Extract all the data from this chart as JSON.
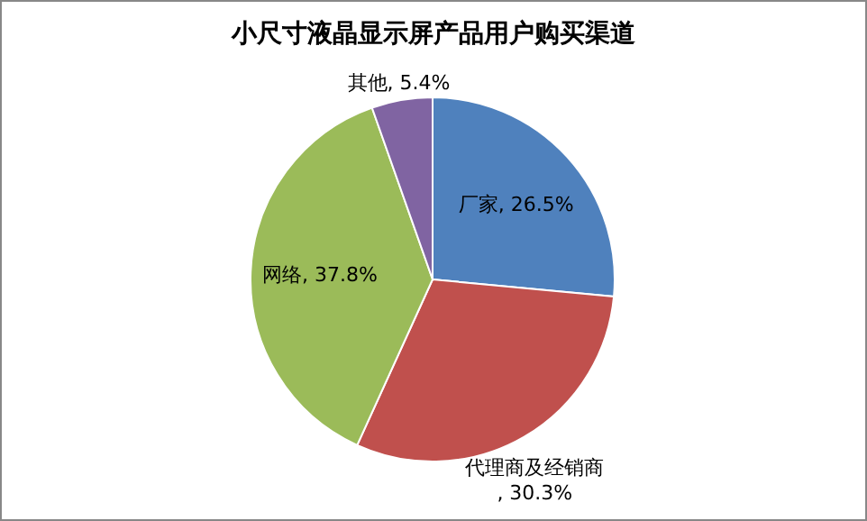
{
  "chart_data": {
    "type": "pie",
    "title": "小尺寸液晶显示屏产品用户购买渠道",
    "categories": [
      "厂家",
      "代理商及经销商",
      "网络",
      "其他"
    ],
    "values": [
      26.5,
      30.3,
      37.8,
      5.4
    ],
    "value_labels": [
      ", 26.5%",
      ", 30.3%",
      ", 37.8%",
      ", 5.4%"
    ],
    "colors": [
      "#4f81bd",
      "#c0504d",
      "#9bbb59",
      "#8064a2"
    ]
  }
}
